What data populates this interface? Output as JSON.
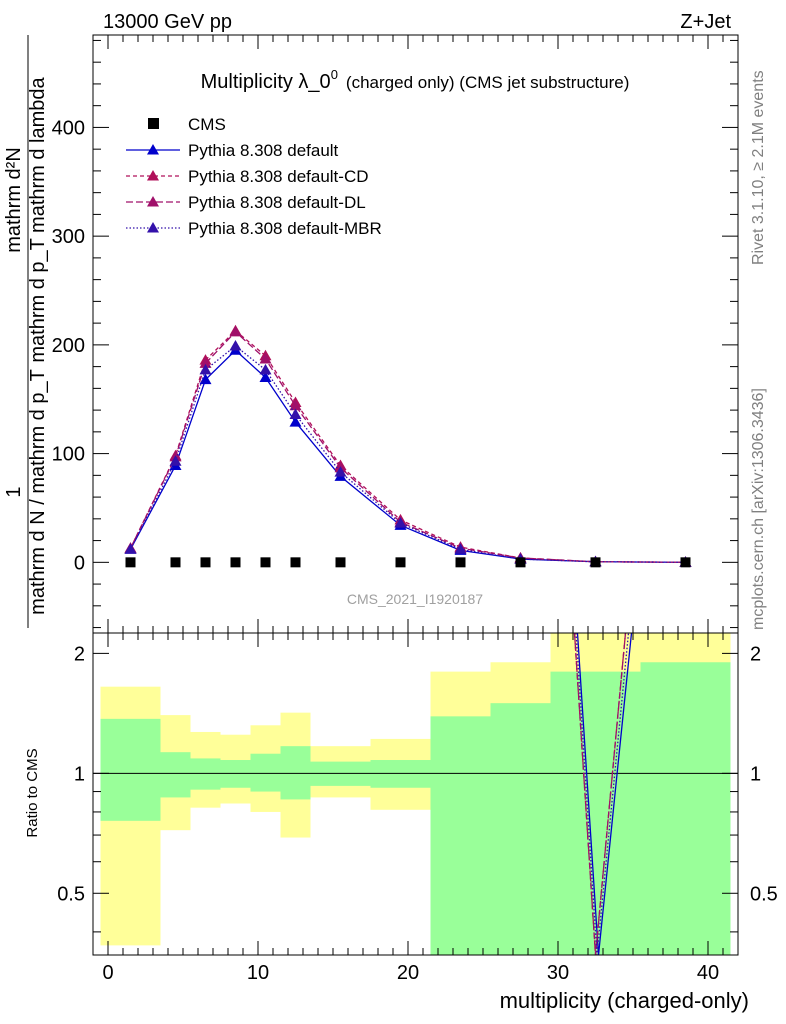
{
  "header": {
    "energy_label": "13000 GeV pp",
    "process_label": "Z+Jet"
  },
  "side_labels": {
    "rivet": "Rivet 3.1.10, ≥ 2.1M events",
    "mcplots": "mcplots.cern.ch [arXiv:1306.3436]"
  },
  "chart_data": [
    {
      "panel": "main",
      "type": "line",
      "title_main": "Multiplicity λ_0",
      "title_sup": "0",
      "title_suffix": "(charged only) (CMS jet substructure)",
      "ylabel_num": "mathrm d²N",
      "ylabel_den": "mathrm d p_T mathrm d lambda",
      "ylabel_prefix": "1",
      "ylabel_norm": "mathrm d N / mathrm d p_T",
      "watermark": "CMS_2021_I1920187",
      "xlim": [
        -1,
        42
      ],
      "ylim": [
        -65,
        485
      ],
      "y_ticks": [
        0,
        100,
        200,
        300,
        400
      ],
      "legend_position": "top-left",
      "data": {
        "name": "CMS",
        "color": "#000000",
        "x": [
          1.5,
          4.5,
          6.5,
          8.5,
          10.5,
          12.5,
          15.5,
          19.5,
          23.5,
          27.5,
          32.5,
          38.5
        ],
        "y": [
          0,
          0,
          0,
          0,
          0,
          0,
          0,
          0,
          0,
          0,
          0,
          0
        ]
      },
      "series": [
        {
          "name": "Pythia 8.308 default",
          "color": "#0000cc",
          "dash": "",
          "x": [
            1.5,
            4.5,
            6.5,
            8.5,
            10.5,
            12.5,
            15.5,
            19.5,
            23.5,
            27.5,
            32.5,
            38.5
          ],
          "y": [
            12,
            89,
            168,
            195,
            170,
            129,
            79,
            34,
            11,
            3,
            0.5,
            0.1
          ]
        },
        {
          "name": "Pythia 8.308 default-CD",
          "color": "#b0105a",
          "dash": "4,3",
          "x": [
            1.5,
            4.5,
            6.5,
            8.5,
            10.5,
            12.5,
            15.5,
            19.5,
            23.5,
            27.5,
            32.5,
            38.5
          ],
          "y": [
            13,
            98,
            186,
            213,
            190,
            147,
            89,
            39,
            14,
            4,
            0.5,
            0.1
          ]
        },
        {
          "name": "Pythia 8.308 default-DL",
          "color": "#a0106a",
          "dash": "7,3",
          "x": [
            1.5,
            4.5,
            6.5,
            8.5,
            10.5,
            12.5,
            15.5,
            19.5,
            23.5,
            27.5,
            32.5,
            38.5
          ],
          "y": [
            13,
            97,
            183,
            212,
            187,
            144,
            87,
            37,
            13,
            4,
            0.5,
            0.1
          ]
        },
        {
          "name": "Pythia 8.308 default-MBR",
          "color": "#3311aa",
          "dash": "1.5,2",
          "x": [
            1.5,
            4.5,
            6.5,
            8.5,
            10.5,
            12.5,
            15.5,
            19.5,
            23.5,
            27.5,
            32.5,
            38.5
          ],
          "y": [
            12,
            93,
            177,
            199,
            177,
            136,
            83,
            36,
            12,
            3,
            0.5,
            0.1
          ]
        }
      ]
    },
    {
      "panel": "ratio",
      "type": "area",
      "ylabel": "Ratio to CMS",
      "xlabel": "multiplicity (charged-only)",
      "xlim": [
        -1,
        42
      ],
      "ylim": [
        0.35,
        2.25
      ],
      "x_ticks": [
        0,
        10,
        20,
        30,
        40
      ],
      "y_ticks": [
        0.5,
        1,
        2
      ],
      "y_tick_labels": [
        "0.5",
        "1",
        "2"
      ],
      "bands": [
        {
          "x": [
            -0.5,
            3.5
          ],
          "green": [
            0.76,
            1.37
          ],
          "yellow": [
            0.37,
            1.65
          ]
        },
        {
          "x": [
            3.5,
            5.5
          ],
          "green": [
            0.87,
            1.13
          ],
          "yellow": [
            0.72,
            1.4
          ]
        },
        {
          "x": [
            5.5,
            7.5
          ],
          "green": [
            0.91,
            1.09
          ],
          "yellow": [
            0.82,
            1.27
          ]
        },
        {
          "x": [
            7.5,
            9.5
          ],
          "green": [
            0.92,
            1.08
          ],
          "yellow": [
            0.84,
            1.25
          ]
        },
        {
          "x": [
            9.5,
            11.5
          ],
          "green": [
            0.9,
            1.12
          ],
          "yellow": [
            0.8,
            1.32
          ]
        },
        {
          "x": [
            11.5,
            13.5
          ],
          "green": [
            0.86,
            1.17
          ],
          "yellow": [
            0.69,
            1.42
          ]
        },
        {
          "x": [
            13.5,
            17.5
          ],
          "green": [
            0.93,
            1.07
          ],
          "yellow": [
            0.87,
            1.17
          ]
        },
        {
          "x": [
            17.5,
            21.5
          ],
          "green": [
            0.92,
            1.08
          ],
          "yellow": [
            0.81,
            1.22
          ]
        },
        {
          "x": [
            21.5,
            25.5
          ],
          "green": [
            0.35,
            1.39
          ],
          "yellow": [
            0.35,
            1.8
          ]
        },
        {
          "x": [
            25.5,
            29.5
          ],
          "green": [
            0.35,
            1.5
          ],
          "yellow": [
            0.35,
            1.9
          ]
        },
        {
          "x": [
            29.5,
            35.5
          ],
          "green": [
            0.35,
            1.8
          ],
          "yellow": [
            0.35,
            2.25
          ]
        },
        {
          "x": [
            35.5,
            41.5
          ],
          "green": [
            0.35,
            1.9
          ],
          "yellow": [
            0.35,
            2.25
          ]
        }
      ],
      "green_color": "#99ff99",
      "yellow_color": "#ffff99",
      "reference_y": 1,
      "series": [
        {
          "name": "Pythia 8.308 default",
          "color": "#0000cc",
          "dash": "",
          "x": [
            31.3,
            32.7,
            34.9
          ],
          "y": [
            2.25,
            0.35,
            2.25
          ]
        },
        {
          "name": "Pythia 8.308 default-CD",
          "color": "#b0105a",
          "dash": "4,3",
          "x": [
            31.1,
            32.5,
            34.5
          ],
          "y": [
            2.25,
            0.35,
            2.25
          ]
        },
        {
          "name": "Pythia 8.308 default-DL",
          "color": "#a0106a",
          "dash": "7,3",
          "x": [
            31.1,
            32.5,
            34.5
          ],
          "y": [
            2.25,
            0.35,
            2.25
          ]
        },
        {
          "name": "Pythia 8.308 default-MBR",
          "color": "#3311aa",
          "dash": "1.5,2",
          "x": [
            31.2,
            32.6,
            34.7
          ],
          "y": [
            2.25,
            0.35,
            2.25
          ]
        }
      ]
    }
  ]
}
